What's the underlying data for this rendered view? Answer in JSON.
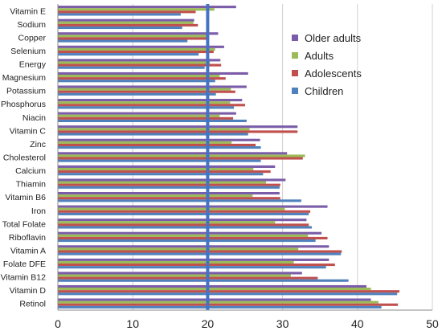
{
  "chart_data": {
    "type": "bar",
    "orientation": "horizontal",
    "title": "",
    "xlabel": "",
    "ylabel": "",
    "xlim": [
      0,
      50
    ],
    "x_ticks": [
      "0",
      "10",
      "20",
      "30",
      "40",
      "50"
    ],
    "grid": "vertical",
    "legend_position": "right",
    "reference_line": {
      "value": 20,
      "color": "#4472C4"
    },
    "categories": [
      "Vitamin E",
      "Sodium",
      "Copper",
      "Selenium",
      "Energy",
      "Magnesium",
      "Potassium",
      "Phosphorus",
      "Niacin",
      "Vitamin C",
      "Zinc",
      "Cholesterol",
      "Calcium",
      "Thiamin",
      "Vitamin B6",
      "Iron",
      "Total Folate",
      "Riboflavin",
      "Vitamin A",
      "Folate DFE",
      "Vitamin B12",
      "Vitamin D",
      "Retinol"
    ],
    "series": [
      {
        "name": "Older adults",
        "color": "#7A5CA8",
        "values": [
          23.8,
          18.2,
          21.4,
          22.2,
          21.7,
          25.4,
          25.2,
          24.6,
          23.8,
          32,
          27,
          30.6,
          29,
          30.4,
          29.6,
          36,
          33.2,
          35.2,
          36.2,
          36.2,
          32.6,
          41.2,
          41.8
        ]
      },
      {
        "name": "Adults",
        "color": "#9BBB59",
        "values": [
          20.9,
          18.1,
          19.8,
          21,
          20.3,
          21.6,
          23.1,
          23,
          21.6,
          25.6,
          23.2,
          33,
          26.1,
          27.8,
          26,
          30.3,
          29,
          33.4,
          32.1,
          31.5,
          31.1,
          41.8,
          42.8
        ]
      },
      {
        "name": "Adolescents",
        "color": "#C0504D",
        "values": [
          18.4,
          18.7,
          20.2,
          20.8,
          21.8,
          22.4,
          23.7,
          25,
          23.4,
          32,
          26.4,
          32.7,
          28.4,
          29.7,
          29.7,
          33.7,
          33.5,
          36,
          37.9,
          37,
          34.7,
          45.6,
          45.4
        ]
      },
      {
        "name": "Children",
        "color": "#4F81BD",
        "values": [
          16.4,
          16.6,
          17.3,
          18.8,
          19.6,
          21,
          21.1,
          23.5,
          25.2,
          25.4,
          27.1,
          27.1,
          27.4,
          29.6,
          32.5,
          33.5,
          33.9,
          34.4,
          37.8,
          35.8,
          38.8,
          45.3,
          43.2
        ]
      }
    ]
  }
}
